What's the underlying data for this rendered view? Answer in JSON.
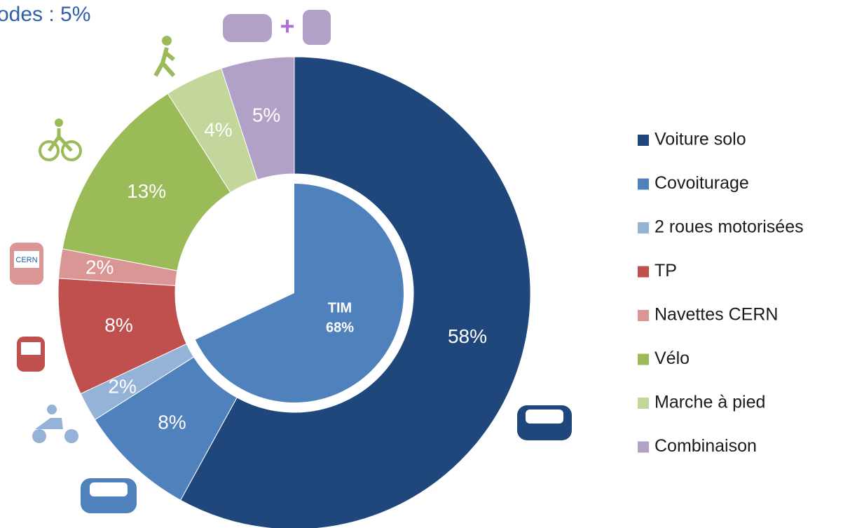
{
  "chart_data": {
    "type": "donut",
    "annotation": "odes : 5%",
    "categories": [
      "Voiture solo",
      "Covoiturage",
      "2 roues motorisées",
      "TP",
      "Navettes CERN",
      "Vélo",
      "Marche à pied",
      "Combinaison"
    ],
    "values": [
      58,
      8,
      2,
      8,
      2,
      13,
      4,
      5
    ],
    "value_labels": [
      "58%",
      "8%",
      "2%",
      "8%",
      "2%",
      "13%",
      "4%",
      "5%"
    ],
    "colors": [
      "#1f477b",
      "#4f81bd",
      "#95b3d7",
      "#c0504d",
      "#d99694",
      "#9bbb59",
      "#c3d69b",
      "#b2a1c7"
    ],
    "inner": {
      "name": "TIM",
      "values": [
        68
      ],
      "value_labels": [
        "68%"
      ],
      "color": "#4f81bd"
    },
    "icon_text": "CERN",
    "legend": "right"
  }
}
